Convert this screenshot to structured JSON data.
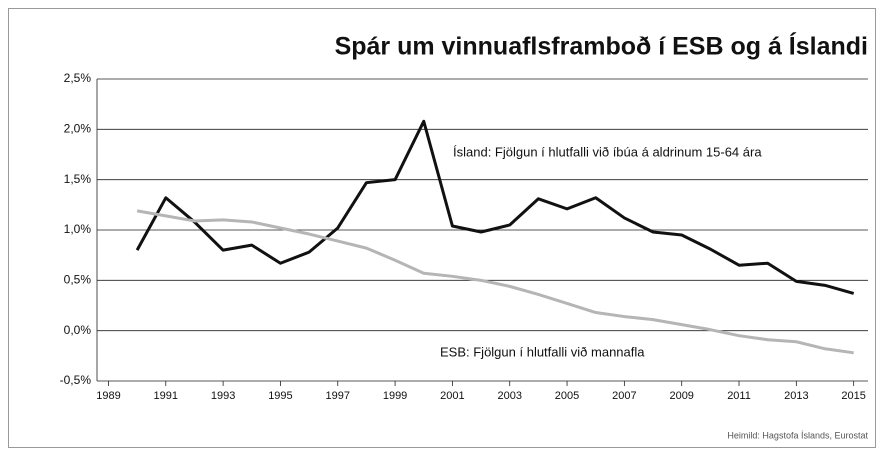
{
  "chart_data": {
    "type": "line",
    "title": "Spár um vinnuaflsframboð í ESB og á Íslandi",
    "source": "Heimild:  Hagstofa Íslands, Eurostat",
    "x": [
      1990,
      1991,
      1992,
      1993,
      1994,
      1995,
      1996,
      1997,
      1998,
      1999,
      2000,
      2001,
      2002,
      2003,
      2004,
      2005,
      2006,
      2007,
      2008,
      2009,
      2010,
      2011,
      2012,
      2013,
      2014,
      2015
    ],
    "series": [
      {
        "name": "Ísland: Fjölgun í hlutfalli við íbúa á aldrinum 15-64 ára",
        "color": "#111111",
        "values": [
          0.8,
          1.32,
          1.08,
          0.8,
          0.85,
          0.67,
          0.78,
          1.02,
          1.47,
          1.5,
          2.08,
          1.04,
          0.98,
          1.05,
          1.31,
          1.21,
          1.32,
          1.12,
          0.98,
          0.95,
          0.81,
          0.65,
          0.67,
          0.49,
          0.45,
          0.37
        ]
      },
      {
        "name": "ESB: Fjölgun í hlutfalli við mannafla",
        "color": "#b5b5b5",
        "values": [
          1.19,
          1.14,
          1.09,
          1.1,
          1.08,
          1.02,
          0.96,
          0.89,
          0.82,
          0.7,
          0.57,
          0.54,
          0.5,
          0.44,
          0.36,
          0.27,
          0.18,
          0.14,
          0.11,
          0.06,
          0.01,
          -0.05,
          -0.09,
          -0.11,
          -0.18,
          -0.22
        ]
      }
    ],
    "xlim": [
      1988.6,
      2015.5
    ],
    "xticks": [
      1989,
      1991,
      1993,
      1995,
      1997,
      1999,
      2001,
      2003,
      2005,
      2007,
      2009,
      2011,
      2013,
      2015
    ],
    "ylim": [
      -0.5,
      2.5
    ],
    "yticks": [
      {
        "value": -0.5,
        "label": "-0,5%"
      },
      {
        "value": 0,
        "label": "0,0%"
      },
      {
        "value": 0.5,
        "label": "0,5%"
      },
      {
        "value": 1,
        "label": "1,0%"
      },
      {
        "value": 1.5,
        "label": "1,5%"
      },
      {
        "value": 2,
        "label": "2,0%"
      },
      {
        "value": 2.5,
        "label": "2,5%"
      }
    ],
    "grid": true
  }
}
